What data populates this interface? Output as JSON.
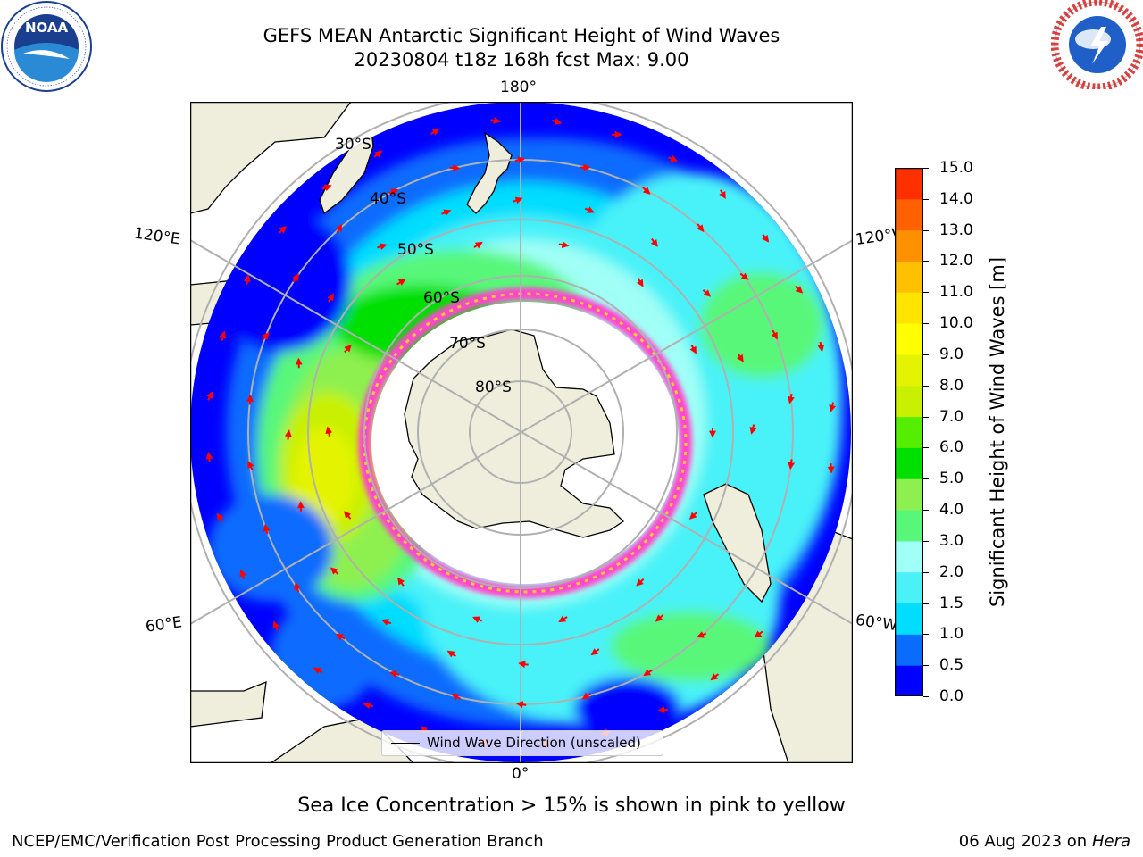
{
  "title": {
    "line1": "GEFS MEAN Antarctic Significant Height of Wind Waves",
    "line2": "20230804 t18z 168h fcst   Max: 9.00"
  },
  "logos": {
    "left": {
      "icon": "noaa-logo",
      "text": "NOAA",
      "ring_text": "NATIONAL OCEANIC AND ATMOSPHERIC ADMINISTRATION · U.S. DEPARTMENT OF COMMERCE"
    },
    "right": {
      "icon": "national-weather-service-logo",
      "ring_text": "NATIONAL WEATHER SERVICE"
    }
  },
  "map": {
    "projection": "south polar stereographic",
    "longitude_labels": [
      "180°",
      "120°E",
      "120°W",
      "60°E",
      "60°W",
      "0°"
    ],
    "latitude_labels": [
      "30°S",
      "40°S",
      "50°S",
      "60°S",
      "70°S",
      "80°S"
    ],
    "colors": {
      "land": "#efeedc",
      "ice_interior": "#ffffff",
      "graticule": "#b0b0b0",
      "arrow": "#ff0000",
      "sea_ice_edge": "#ff44cc"
    }
  },
  "colorbar": {
    "label": "Significant Height of Wind Waves [m]",
    "ticks": [
      "0.0",
      "0.5",
      "1.0",
      "1.5",
      "2.0",
      "3.0",
      "4.0",
      "5.0",
      "6.0",
      "7.0",
      "8.0",
      "9.0",
      "10.0",
      "11.0",
      "12.0",
      "13.0",
      "14.0",
      "15.0"
    ],
    "colors": [
      "#0000ff",
      "#0a6cff",
      "#00ddff",
      "#4af2f8",
      "#a0fff6",
      "#58f77a",
      "#8ef050",
      "#00e000",
      "#55ee00",
      "#c8f000",
      "#e4f400",
      "#ffff00",
      "#ffe400",
      "#ffc000",
      "#ff9000",
      "#ff6000",
      "#ff3000"
    ]
  },
  "legend": {
    "label": "Wind Wave Direction (unscaled)"
  },
  "footer": {
    "note": "Sea Ice Concentration > 15% is shown in pink to yellow",
    "credit": "NCEP/EMC/Verification Post Processing Product Generation Branch",
    "date": "06 Aug 2023 on",
    "machine": "Hera"
  }
}
